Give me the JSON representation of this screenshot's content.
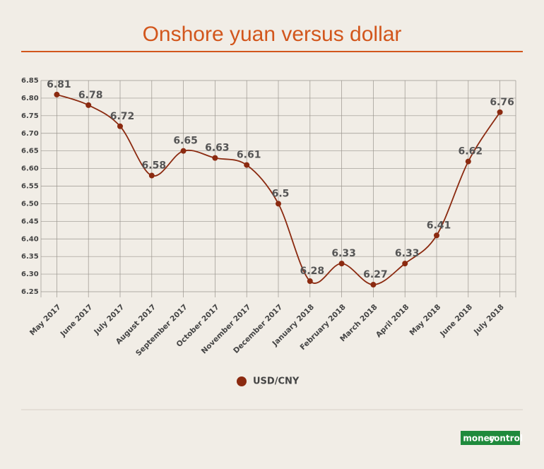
{
  "chart_data": {
    "type": "line",
    "title": "Onshore yuan versus dollar",
    "categories": [
      "May 2017",
      "June 2017",
      "July 2017",
      "August 2017",
      "September 2017",
      "October 2017",
      "November 2017",
      "December 2017",
      "January 2018",
      "February 2018",
      "March 2018",
      "April 2018",
      "May 2018",
      "June 2018",
      "July 2018"
    ],
    "series": [
      {
        "name": "USD/CNY",
        "color": "#8b2a10",
        "values": [
          6.81,
          6.78,
          6.72,
          6.58,
          6.65,
          6.63,
          6.61,
          6.5,
          6.28,
          6.33,
          6.27,
          6.33,
          6.41,
          6.62,
          6.76
        ]
      }
    ],
    "ylim": [
      6.25,
      6.85
    ],
    "yticks": [
      6.25,
      {
        "value": 6.3,
        "label": "6.30"
      },
      6.35,
      {
        "value": 6.4,
        "label": "6.40"
      },
      6.45,
      {
        "value": 6.5,
        "label": "6.50"
      },
      6.55,
      {
        "value": 6.6,
        "label": "6.60"
      },
      6.65,
      {
        "value": 6.7,
        "label": "6.70"
      },
      6.75,
      {
        "value": 6.8,
        "label": "6.80"
      },
      6.85
    ],
    "grid": true,
    "brand": [
      "money",
      "control"
    ]
  }
}
